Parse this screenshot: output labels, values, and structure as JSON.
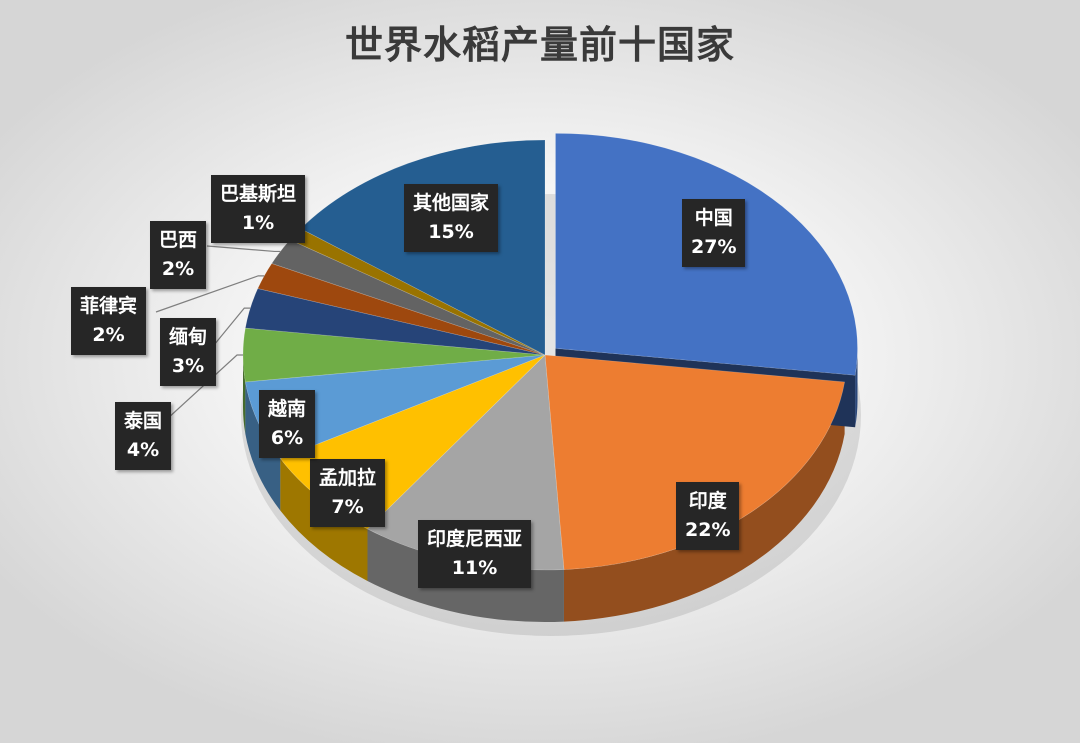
{
  "chart_data": {
    "type": "pie",
    "title": "世界水稻产量前十国家",
    "slices": [
      {
        "label": "中国",
        "value": 27,
        "display": "27%",
        "color": "#4472C4"
      },
      {
        "label": "印度",
        "value": 22,
        "display": "22%",
        "color": "#ED7D31"
      },
      {
        "label": "印度尼西亚",
        "value": 11,
        "display": "11%",
        "color": "#A5A5A5"
      },
      {
        "label": "孟加拉",
        "value": 7,
        "display": "7%",
        "color": "#FFC000"
      },
      {
        "label": "越南",
        "value": 6,
        "display": "6%",
        "color": "#5B9BD5"
      },
      {
        "label": "泰国",
        "value": 4,
        "display": "4%",
        "color": "#70AD47"
      },
      {
        "label": "缅甸",
        "value": 3,
        "display": "3%",
        "color": "#264478"
      },
      {
        "label": "菲律宾",
        "value": 2,
        "display": "2%",
        "color": "#9E480E"
      },
      {
        "label": "巴西",
        "value": 2,
        "display": "2%",
        "color": "#636363"
      },
      {
        "label": "巴基斯坦",
        "value": 1,
        "display": "1%",
        "color": "#997300"
      },
      {
        "label": "其他国家",
        "value": 15,
        "display": "15%",
        "color": "#255E91"
      }
    ],
    "exploded_slice": "中国",
    "legend": "none",
    "data_labels": "callout"
  }
}
